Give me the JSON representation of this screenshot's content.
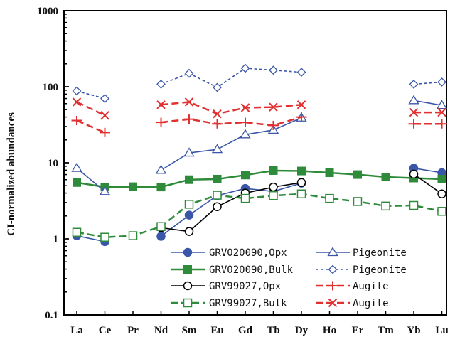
{
  "chart_data": {
    "type": "line",
    "title": "",
    "ylabel": "CI-normalized abundances",
    "xlabel": "",
    "yscale": "log",
    "ylim": [
      0.1,
      1000
    ],
    "yticks": [
      "0.1",
      "1",
      "10",
      "100",
      "1000"
    ],
    "categories": [
      "La",
      "Ce",
      "Pr",
      "Nd",
      "Sm",
      "Eu",
      "Gd",
      "Tb",
      "Dy",
      "Ho",
      "Er",
      "Tm",
      "Yb",
      "Lu"
    ],
    "grid": false,
    "legend_position": "bottom-right",
    "series": [
      {
        "name": "GRV020090,Opx",
        "color": "#3a56a8",
        "marker": "circle-filled",
        "dash": "solid",
        "values": [
          1.1,
          0.92,
          null,
          1.08,
          2.05,
          3.7,
          4.6,
          4.2,
          5.4,
          null,
          null,
          null,
          8.5,
          7.4
        ]
      },
      {
        "name": "GRV020090,Bulk",
        "color": "#2e8b3a",
        "marker": "square-filled",
        "dash": "solid",
        "values": [
          5.5,
          4.8,
          4.85,
          4.8,
          6.0,
          6.1,
          6.9,
          7.9,
          7.8,
          7.4,
          7.0,
          6.5,
          6.3,
          6.1
        ]
      },
      {
        "name": "GRV99027,Opx",
        "color": "#000000",
        "marker": "circle-open",
        "dash": "solid",
        "values": [
          null,
          null,
          null,
          1.4,
          1.25,
          2.65,
          4.0,
          4.8,
          5.5,
          null,
          null,
          null,
          7.1,
          3.9
        ]
      },
      {
        "name": "GRV99027,Bulk",
        "color": "#2e8b3a",
        "marker": "square-open",
        "dash": "dashed",
        "values": [
          1.22,
          1.05,
          1.1,
          1.45,
          2.85,
          3.75,
          3.4,
          3.7,
          3.9,
          3.4,
          3.1,
          2.7,
          2.75,
          2.3
        ]
      },
      {
        "name": "Pigeonite",
        "color": "#3a56a8",
        "marker": "triangle-open",
        "dash": "solid",
        "values": [
          8.5,
          4.2,
          null,
          8.0,
          13.5,
          15.0,
          23.5,
          27.0,
          39.0,
          null,
          null,
          null,
          66.0,
          57.0
        ]
      },
      {
        "name": "Pigeonite",
        "color": "#3a56a8",
        "marker": "diamond-open",
        "dash": "dashed",
        "values": [
          88.0,
          70.0,
          null,
          108.0,
          150.0,
          98.0,
          175.0,
          165.0,
          155.0,
          null,
          null,
          null,
          108.0,
          115.0
        ]
      },
      {
        "name": "Augite",
        "color": "#e03030",
        "marker": "plus",
        "dash": "dashed",
        "values": [
          36.0,
          25.0,
          null,
          34.0,
          37.5,
          32.5,
          34.0,
          31.0,
          40.0,
          null,
          null,
          null,
          32.5,
          32.5
        ]
      },
      {
        "name": "Augite",
        "color": "#e03030",
        "marker": "x",
        "dash": "dashed",
        "values": [
          63.0,
          42.0,
          null,
          58.0,
          63.0,
          44.0,
          53.0,
          54.0,
          58.0,
          null,
          null,
          null,
          46.0,
          46.0
        ]
      }
    ]
  }
}
